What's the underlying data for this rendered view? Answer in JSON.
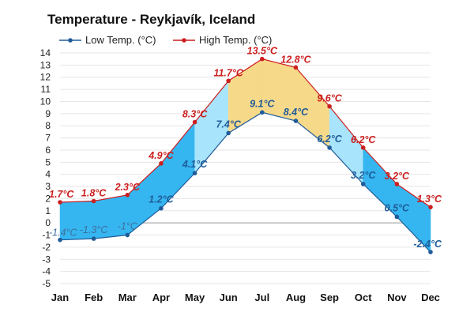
{
  "colors": {
    "low_line": "#1f5c99",
    "high_line": "#cc1f1f",
    "band_cold": "#35b6f0",
    "band_cool": "#a8e4fb",
    "band_warm": "#f7d98a",
    "grid": "#e6e6e6",
    "zero_line": "#999999"
  },
  "chart_data": {
    "type": "area",
    "title": "Temperature - Reykjavík, Iceland",
    "categories": [
      "Jan",
      "Feb",
      "Mar",
      "Apr",
      "May",
      "Jun",
      "Jul",
      "Aug",
      "Sep",
      "Oct",
      "Nov",
      "Dec"
    ],
    "series": [
      {
        "name": "Low Temp. (°C)",
        "values": [
          -1.4,
          -1.3,
          -1.0,
          1.2,
          4.1,
          7.4,
          9.1,
          8.4,
          6.2,
          3.2,
          0.5,
          -2.4
        ],
        "labels": [
          "-1.4°C",
          "-1.3°C",
          "-1°C",
          "1.2°C",
          "4.1°C",
          "7.4°C",
          "9.1°C",
          "8.4°C",
          "6.2°C",
          "3.2°C",
          "0.5°C",
          "-2.4°C"
        ]
      },
      {
        "name": "High Temp. (°C)",
        "values": [
          1.7,
          1.8,
          2.3,
          4.9,
          8.3,
          11.7,
          13.5,
          12.8,
          9.6,
          6.2,
          3.2,
          1.3
        ],
        "labels": [
          "1.7°C",
          "1.8°C",
          "2.3°C",
          "4.9°C",
          "8.3°C",
          "11.7°C",
          "13.5°C",
          "12.8°C",
          "9.6°C",
          "6.2°C",
          "3.2°C",
          "1.3°C"
        ]
      }
    ],
    "ylim": [
      -5,
      14
    ],
    "yticks": [
      -5,
      -4,
      -3,
      -2,
      -1,
      0,
      1,
      2,
      3,
      4,
      5,
      6,
      7,
      8,
      9,
      10,
      11,
      12,
      13,
      14
    ],
    "grid": true,
    "legend": "top-left"
  }
}
